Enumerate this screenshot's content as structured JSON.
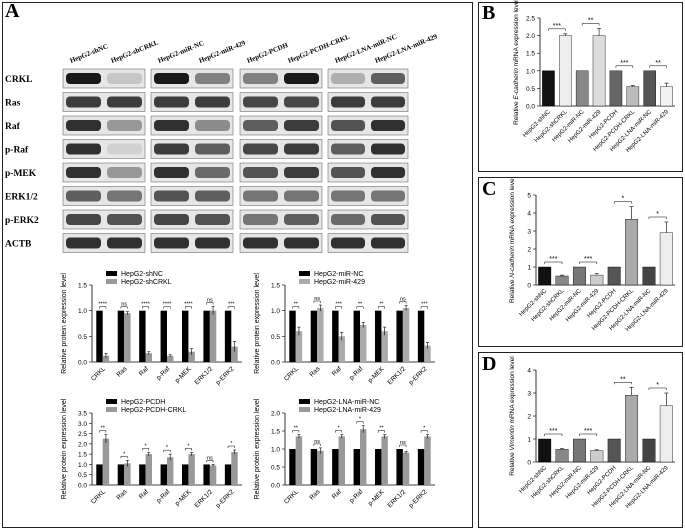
{
  "panel_letters": {
    "A": "A",
    "B": "B",
    "C": "C",
    "D": "D"
  },
  "blot": {
    "lanes": [
      "HepG2-shNC",
      "HepG2-shCRKL",
      "HepG2-miR-NC",
      "HepG2-miR-429",
      "HepG2-PCDH",
      "HepG2-PCDH-CRKL",
      "HepG2-LNA-miR-NC",
      "HepG2-LNA-miR-429"
    ],
    "proteins": [
      "CRKL",
      "Ras",
      "Raf",
      "p-Raf",
      "p-MEK",
      "ERK1/2",
      "p-ERK2",
      "ACTB"
    ],
    "intensity": [
      [
        1.0,
        0.25,
        1.0,
        0.55,
        0.55,
        1.0,
        0.35,
        0.7
      ],
      [
        0.85,
        0.85,
        0.85,
        0.85,
        0.8,
        0.8,
        0.85,
        0.85
      ],
      [
        0.9,
        0.45,
        0.9,
        0.5,
        0.7,
        0.85,
        0.75,
        0.9
      ],
      [
        0.9,
        0.2,
        0.85,
        0.7,
        0.8,
        0.85,
        0.7,
        0.9
      ],
      [
        0.9,
        0.45,
        0.9,
        0.65,
        0.75,
        0.85,
        0.75,
        0.9
      ],
      [
        0.7,
        0.6,
        0.75,
        0.7,
        0.6,
        0.6,
        0.6,
        0.6
      ],
      [
        0.8,
        0.75,
        0.8,
        0.75,
        0.6,
        0.7,
        0.65,
        0.75
      ],
      [
        0.9,
        0.9,
        0.9,
        0.9,
        0.9,
        0.9,
        0.9,
        0.9
      ]
    ]
  },
  "chart_data": [
    {
      "type": "bar",
      "id": "A1",
      "ylabel": "Relative protein expression level",
      "ylim": [
        0,
        1.5
      ],
      "yticks": [
        "0.0",
        "0.5",
        "1.0",
        "1.5"
      ],
      "categories": [
        "CRKL",
        "Ras",
        "Raf",
        "p-Raf",
        "p-MEK",
        "ERK1/2",
        "p-ERK2"
      ],
      "series": [
        {
          "name": "HepG2-shNC",
          "color": "#000000",
          "values": [
            1,
            1,
            1,
            1,
            1,
            1,
            1
          ],
          "errors": [
            0,
            0,
            0,
            0,
            0,
            0,
            0
          ]
        },
        {
          "name": "HepG2-shCRKL",
          "color": "#999999",
          "values": [
            0.12,
            0.95,
            0.17,
            0.12,
            0.2,
            1.0,
            0.3
          ],
          "errors": [
            0.05,
            0.03,
            0.03,
            0.02,
            0.06,
            0.08,
            0.1
          ]
        }
      ],
      "significance": [
        "****",
        "ns",
        "****",
        "****",
        "****",
        "ns",
        "***"
      ]
    },
    {
      "type": "bar",
      "id": "A2",
      "ylabel": "Relative protein expression level",
      "ylim": [
        0,
        1.5
      ],
      "yticks": [
        "0.0",
        "0.5",
        "1.0",
        "1.5"
      ],
      "categories": [
        "CRKL",
        "Ras",
        "Raf",
        "p-Raf",
        "p-MEK",
        "ERK1/2",
        "p-ERK2"
      ],
      "series": [
        {
          "name": "HepG2-miR-NC",
          "color": "#000000",
          "values": [
            1,
            1,
            1,
            1,
            1,
            1,
            1
          ],
          "errors": [
            0,
            0,
            0,
            0,
            0,
            0,
            0
          ]
        },
        {
          "name": "HepG2-miR-429",
          "color": "#aaaaaa",
          "values": [
            0.6,
            1.05,
            0.5,
            0.72,
            0.6,
            1.05,
            0.32
          ],
          "errors": [
            0.08,
            0.06,
            0.08,
            0.05,
            0.08,
            0.05,
            0.06
          ]
        }
      ],
      "significance": [
        "**",
        "ns",
        "***",
        "**",
        "**",
        "ns",
        "***"
      ]
    },
    {
      "type": "bar",
      "id": "A3",
      "ylabel": "Relative protein expression level",
      "ylim": [
        0,
        3.5
      ],
      "yticks": [
        "0.0",
        "0.5",
        "1.0",
        "1.5",
        "2.0",
        "2.5",
        "3.0",
        "3.5"
      ],
      "categories": [
        "CRKL",
        "Ras",
        "Raf",
        "p-Raf",
        "p-MEK",
        "ERK1/2",
        "p-ERK2"
      ],
      "series": [
        {
          "name": "HepG2-PCDH",
          "color": "#000000",
          "values": [
            1,
            1,
            1,
            1,
            1,
            1,
            1
          ],
          "errors": [
            0,
            0,
            0,
            0,
            0,
            0,
            0
          ]
        },
        {
          "name": "HepG2-PCDH-CRKL",
          "color": "#999999",
          "values": [
            2.25,
            1.05,
            1.5,
            1.35,
            1.5,
            0.95,
            1.6
          ],
          "errors": [
            0.2,
            0.15,
            0.08,
            0.15,
            0.08,
            0.05,
            0.1
          ]
        }
      ],
      "significance": [
        "**",
        "*",
        "*",
        "*",
        "*",
        "ns",
        "*"
      ]
    },
    {
      "type": "bar",
      "id": "A4",
      "ylabel": "Relative protein expression level",
      "ylim": [
        0,
        2.0
      ],
      "yticks": [
        "0.0",
        "0.5",
        "1.0",
        "1.5",
        "2.0"
      ],
      "categories": [
        "CRKL",
        "Ras",
        "Raf",
        "p-Raf",
        "p-MEK",
        "ERK1/2",
        "p-ERK2"
      ],
      "series": [
        {
          "name": "HepG2-LNA-miR-NC",
          "color": "#000000",
          "values": [
            1,
            1,
            1,
            1,
            1,
            1,
            1
          ],
          "errors": [
            0,
            0,
            0,
            0,
            0,
            0,
            0
          ]
        },
        {
          "name": "HepG2-LNA-miR-429",
          "color": "#999999",
          "values": [
            1.35,
            0.95,
            1.35,
            1.55,
            1.35,
            0.9,
            1.35
          ],
          "errors": [
            0.05,
            0.08,
            0.05,
            0.1,
            0.05,
            0.03,
            0.05
          ]
        }
      ],
      "significance": [
        "**",
        "ns",
        "*",
        "*",
        "**",
        "ns",
        "*"
      ]
    },
    {
      "type": "bar",
      "id": "B",
      "ylabel_parts": [
        "Relative ",
        "E-cadherin",
        " mRNA expression level"
      ],
      "ylim": [
        0,
        2.5
      ],
      "yticks": [
        "0.0",
        "0.5",
        "1.0",
        "1.5",
        "2.0",
        "2.5"
      ],
      "categories": [
        "HepG2-shNC",
        "HepG2-shCRKL",
        "HepG2-miR-NC",
        "HepG2-miR-429",
        "HepG2-PCDH",
        "HepG2-PCDH-CRKL",
        "HepG2-LNA-miR-NC",
        "HepG2-LNA-miR-429"
      ],
      "values": [
        1,
        2.0,
        1,
        2.0,
        1,
        0.55,
        1,
        0.55
      ],
      "errors": [
        0,
        0.05,
        0,
        0.2,
        0,
        0.03,
        0,
        0.1
      ],
      "colors": [
        "#111111",
        "#eeeeee",
        "#888888",
        "#dddddd",
        "#666666",
        "#bbbbbb",
        "#555555",
        "#f2f2f2"
      ],
      "significance": [
        "***",
        "**",
        "***",
        "**"
      ]
    },
    {
      "type": "bar",
      "id": "C",
      "ylabel_parts": [
        "Relative ",
        "N-cadherin",
        " mRNA expression level"
      ],
      "ylim": [
        0,
        5
      ],
      "yticks": [
        "0",
        "1",
        "2",
        "3",
        "4",
        "5"
      ],
      "categories": [
        "HepG2-shNC",
        "HepG2-shCRKL",
        "HepG2-miR-NC",
        "HepG2-miR-429",
        "HepG2-PCDH",
        "HepG2-PCDH-CRKL",
        "HepG2-LNA-miR-NC",
        "HepG2-LNA-miR-429"
      ],
      "values": [
        1,
        0.5,
        1,
        0.55,
        1,
        3.65,
        1,
        2.9
      ],
      "errors": [
        0,
        0.05,
        0,
        0.08,
        0,
        0.7,
        0,
        0.6
      ],
      "colors": [
        "#111111",
        "#888888",
        "#777777",
        "#cccccc",
        "#555555",
        "#aaaaaa",
        "#444444",
        "#eeeeee"
      ],
      "significance": [
        "***",
        "***",
        "*",
        "*"
      ]
    },
    {
      "type": "bar",
      "id": "D",
      "ylabel_parts": [
        "Relative ",
        "Vimentin",
        " mRNA expression level"
      ],
      "ylim": [
        0,
        4
      ],
      "yticks": [
        "0",
        "1",
        "2",
        "3",
        "4"
      ],
      "categories": [
        "HepG2-shNC",
        "HepG2-shCRKL",
        "HepG2-miR-NC",
        "HepG2-miR-429",
        "HepG2-PCDH",
        "HepG2-PCDH-CRKL",
        "HepG2-LNA-miR-NC",
        "HepG2-LNA-miR-429"
      ],
      "values": [
        1,
        0.55,
        1,
        0.5,
        1,
        2.9,
        1,
        2.45
      ],
      "errors": [
        0,
        0.03,
        0,
        0.03,
        0,
        0.35,
        0,
        0.55
      ],
      "colors": [
        "#111111",
        "#888888",
        "#777777",
        "#cccccc",
        "#555555",
        "#aaaaaa",
        "#444444",
        "#eeeeee"
      ],
      "significance": [
        "***",
        "***",
        "**",
        "*"
      ]
    }
  ]
}
